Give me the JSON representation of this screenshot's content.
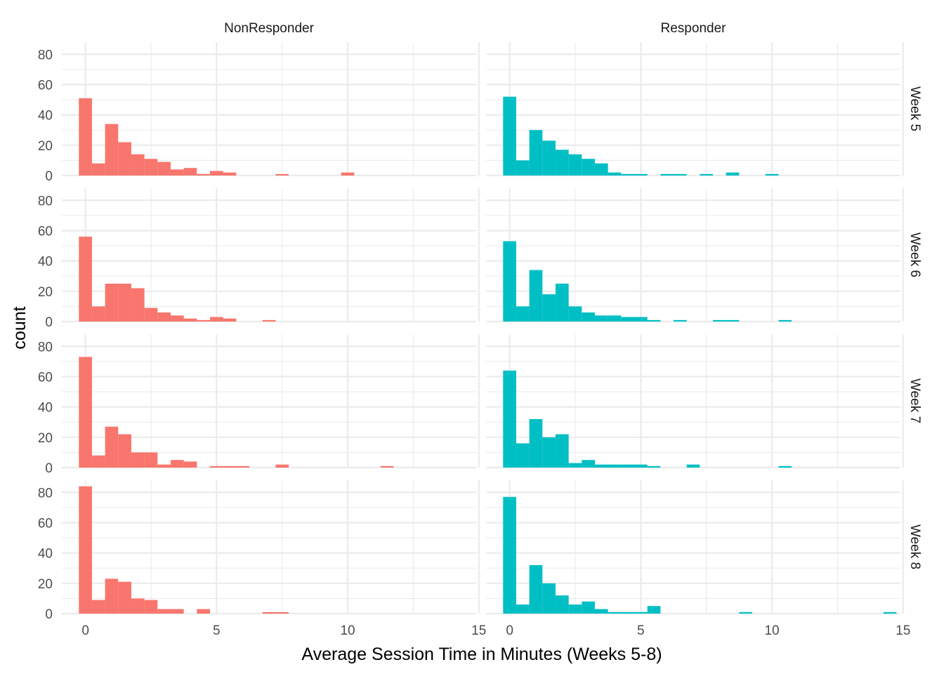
{
  "chart_data": {
    "type": "histogram",
    "xlabel": "Average Session Time in Minutes (Weeks 5-8)",
    "ylabel": "count",
    "xlim": [
      -0.9,
      14.9
    ],
    "ylim": [
      0,
      88
    ],
    "x_ticks": [
      0,
      5,
      10,
      15
    ],
    "y_ticks": [
      0,
      20,
      40,
      60,
      80
    ],
    "bin_width": 0.5,
    "grid": true,
    "legend": "none",
    "colors": {
      "NonResponder": "#F8766D",
      "Responder": "#00BFC4"
    },
    "column_facets": [
      "NonResponder",
      "Responder"
    ],
    "row_facets": [
      "Week 5",
      "Week 6",
      "Week 7",
      "Week 8"
    ],
    "bin_starts": [
      -0.25,
      0.25,
      0.75,
      1.25,
      1.75,
      2.25,
      2.75,
      3.25,
      3.75,
      4.25,
      4.75,
      5.25,
      5.75,
      6.25,
      6.75,
      7.25,
      7.75,
      8.25,
      8.75,
      9.25,
      9.75,
      10.25,
      10.75,
      11.25,
      11.75,
      12.25,
      12.75,
      13.25,
      13.75,
      14.25
    ],
    "panels": [
      {
        "group": "NonResponder",
        "week": "Week 5",
        "counts": [
          51,
          8,
          34,
          22,
          14,
          11,
          9,
          4,
          5,
          1,
          3,
          2,
          0,
          0,
          0,
          1,
          0,
          0,
          0,
          0,
          2,
          0,
          0,
          0,
          0,
          0,
          0,
          0,
          0,
          0
        ]
      },
      {
        "group": "Responder",
        "week": "Week 5",
        "counts": [
          52,
          10,
          30,
          23,
          17,
          14,
          11,
          8,
          2,
          1,
          1,
          0,
          1,
          1,
          0,
          1,
          0,
          2,
          0,
          0,
          1,
          0,
          0,
          0,
          0,
          0,
          0,
          0,
          0,
          0
        ]
      },
      {
        "group": "NonResponder",
        "week": "Week 6",
        "counts": [
          56,
          10,
          25,
          25,
          22,
          9,
          6,
          4,
          2,
          1,
          3,
          2,
          0,
          0,
          1,
          0,
          0,
          0,
          0,
          0,
          0,
          0,
          0,
          0,
          0,
          0,
          0,
          0,
          0,
          0
        ]
      },
      {
        "group": "Responder",
        "week": "Week 6",
        "counts": [
          53,
          10,
          34,
          18,
          25,
          10,
          6,
          4,
          4,
          3,
          3,
          1,
          0,
          1,
          0,
          0,
          1,
          1,
          0,
          0,
          0,
          1,
          0,
          0,
          0,
          0,
          0,
          0,
          0,
          0
        ]
      },
      {
        "group": "NonResponder",
        "week": "Week 7",
        "counts": [
          73,
          8,
          27,
          22,
          10,
          10,
          2,
          5,
          4,
          0,
          1,
          1,
          1,
          0,
          0,
          2,
          0,
          0,
          0,
          0,
          0,
          0,
          0,
          1,
          0,
          0,
          0,
          0,
          0,
          0
        ]
      },
      {
        "group": "Responder",
        "week": "Week 7",
        "counts": [
          64,
          16,
          32,
          20,
          22,
          3,
          5,
          2,
          2,
          2,
          2,
          1,
          0,
          0,
          2,
          0,
          0,
          0,
          0,
          0,
          0,
          1,
          0,
          0,
          0,
          0,
          0,
          0,
          0,
          0
        ]
      },
      {
        "group": "NonResponder",
        "week": "Week 8",
        "counts": [
          84,
          9,
          23,
          21,
          10,
          9,
          3,
          3,
          0,
          3,
          0,
          0,
          0,
          0,
          1,
          1,
          0,
          0,
          0,
          0,
          0,
          0,
          0,
          0,
          0,
          0,
          0,
          0,
          0,
          0
        ]
      },
      {
        "group": "Responder",
        "week": "Week 8",
        "counts": [
          77,
          6,
          32,
          20,
          12,
          6,
          8,
          3,
          1,
          1,
          1,
          5,
          0,
          0,
          0,
          0,
          0,
          0,
          1,
          0,
          0,
          0,
          0,
          0,
          0,
          0,
          0,
          0,
          0,
          1
        ]
      }
    ]
  }
}
